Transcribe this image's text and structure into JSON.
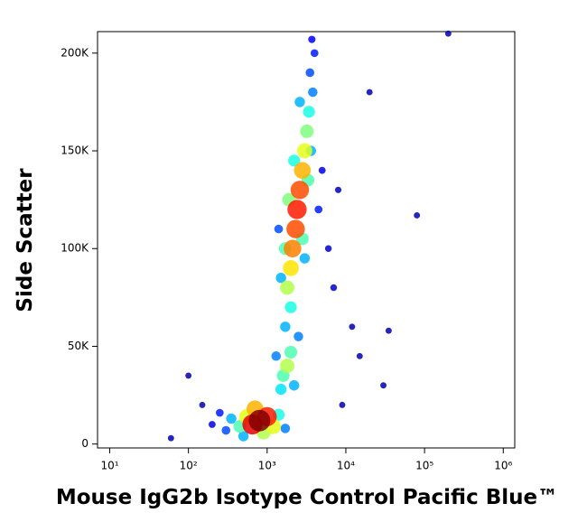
{
  "chart_data": {
    "type": "scatter",
    "x_label": "Mouse IgG2b Isotype Control Pacific Blue™",
    "y_label": "Side Scatter",
    "log_x": true,
    "xlim": [
      7,
      1400000
    ],
    "xticks": [
      {
        "value": 10,
        "label": "10¹"
      },
      {
        "value": 100,
        "label": "10²"
      },
      {
        "value": 1000,
        "label": "10³"
      },
      {
        "value": 10000,
        "label": "10⁴"
      },
      {
        "value": 100000,
        "label": "10⁵"
      },
      {
        "value": 1000000,
        "label": "10⁶"
      }
    ],
    "ylim": [
      -2000,
      211000
    ],
    "yticks": [
      0,
      {
        "value": 50000,
        "label": "50K"
      },
      {
        "value": 100000,
        "label": "100K"
      },
      {
        "value": 150000,
        "label": "150K"
      },
      {
        "value": 200000,
        "label": "200K"
      }
    ],
    "x": [
      800,
      650,
      1000,
      550,
      1200,
      700,
      450,
      900,
      350,
      1400,
      300,
      250,
      1700,
      500,
      200,
      1800,
      1600,
      2000,
      1500,
      2200,
      1300,
      2500,
      1700,
      2000,
      1800,
      2000,
      2100,
      2300,
      2400,
      2600,
      2800,
      3000,
      3200,
      3400,
      1700,
      2800,
      1900,
      3300,
      2200,
      3600,
      1500,
      3000,
      2600,
      3800,
      3500,
      4000,
      3700,
      1400,
      4500,
      5000,
      6000,
      7000,
      8000,
      20000,
      80000,
      35000,
      100,
      150,
      30000,
      60,
      12000,
      9000,
      15000,
      200000
    ],
    "y": [
      12000,
      10000,
      14000,
      14000,
      9000,
      18000,
      9000,
      6000,
      13000,
      15000,
      7000,
      16000,
      8000,
      4000,
      10000,
      40000,
      35000,
      47000,
      28000,
      30000,
      45000,
      55000,
      60000,
      70000,
      80000,
      90000,
      100000,
      110000,
      120000,
      130000,
      140000,
      150000,
      160000,
      170000,
      100000,
      105000,
      125000,
      135000,
      145000,
      150000,
      85000,
      95000,
      175000,
      180000,
      190000,
      200000,
      207000,
      110000,
      120000,
      140000,
      100000,
      80000,
      130000,
      180000,
      117000,
      58000,
      35000,
      20000,
      30000,
      3000,
      60000,
      20000,
      45000,
      210000
    ],
    "density": [
      1.0,
      0.9,
      0.85,
      0.6,
      0.6,
      0.7,
      0.45,
      0.55,
      0.3,
      0.4,
      0.2,
      0.15,
      0.25,
      0.3,
      0.1,
      0.55,
      0.45,
      0.45,
      0.35,
      0.3,
      0.25,
      0.25,
      0.3,
      0.4,
      0.55,
      0.65,
      0.75,
      0.8,
      0.85,
      0.8,
      0.7,
      0.6,
      0.5,
      0.4,
      0.45,
      0.45,
      0.5,
      0.45,
      0.4,
      0.3,
      0.3,
      0.3,
      0.3,
      0.25,
      0.2,
      0.15,
      0.12,
      0.2,
      0.15,
      0.1,
      0.08,
      0.08,
      0.06,
      0.05,
      0.05,
      0.05,
      0.05,
      0.05,
      0.05,
      0.05,
      0.05,
      0.05,
      0.05,
      0.05
    ]
  }
}
